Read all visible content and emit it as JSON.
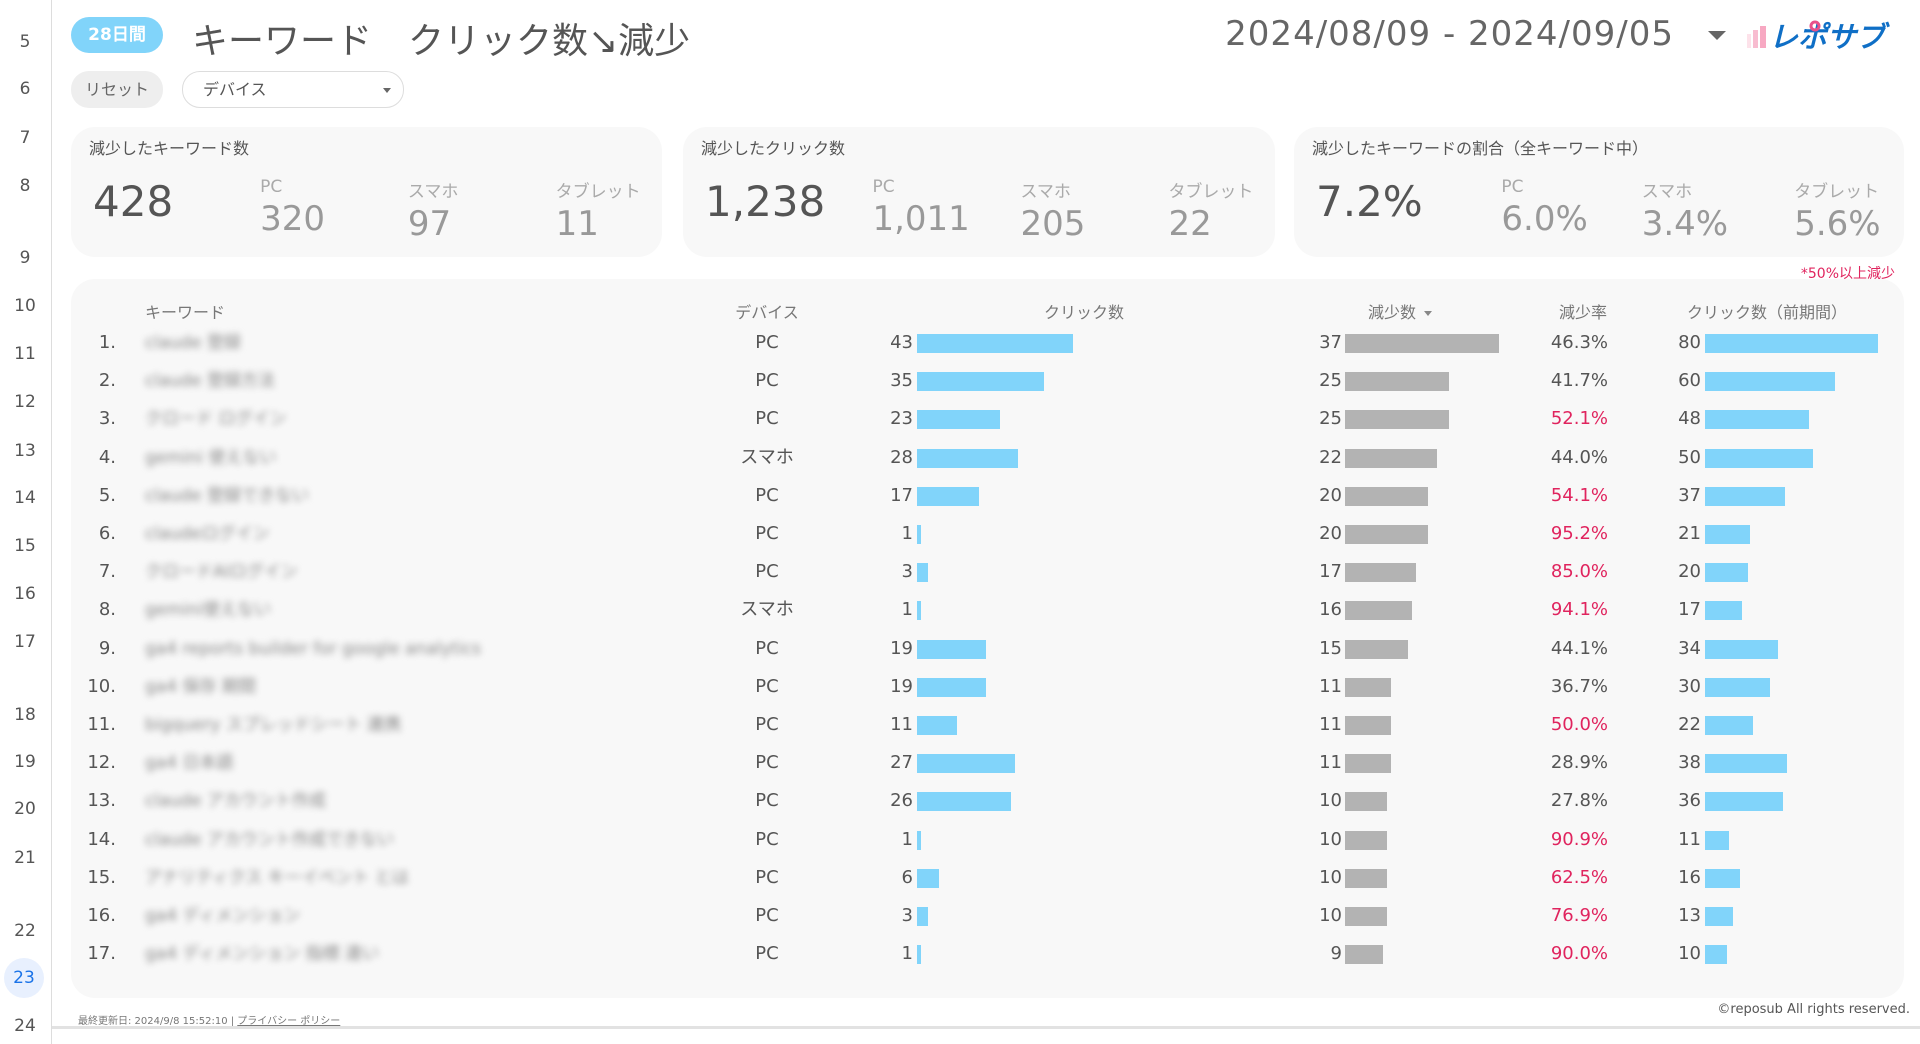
{
  "gutter_rows": [
    "5",
    "6",
    "7",
    "8",
    "9",
    "10",
    "11",
    "12",
    "13",
    "14",
    "15",
    "16",
    "17",
    "18",
    "19",
    "20",
    "21",
    "22",
    "23",
    "24"
  ],
  "selected_row": "23",
  "header": {
    "period_badge": "28日間",
    "title": "キーワード　クリック数↘減少",
    "date_range": "2024/08/09 - 2024/09/05",
    "logo_text": "レポサブ"
  },
  "controls": {
    "reset_label": "リセット",
    "device_dropdown": "デバイス"
  },
  "cards": [
    {
      "label": "減少したキーワード数",
      "total": "428",
      "pc_label": "PC",
      "pc": "320",
      "sp_label": "スマホ",
      "sp": "97",
      "tab_label": "タブレット",
      "tab": "11"
    },
    {
      "label": "減少したクリック数",
      "total": "1,238",
      "pc_label": "PC",
      "pc": "1,011",
      "sp_label": "スマホ",
      "sp": "205",
      "tab_label": "タブレット",
      "tab": "22"
    },
    {
      "label": "減少したキーワードの割合（全キーワード中）",
      "total": "7.2%",
      "pc_label": "PC",
      "pc": "6.0%",
      "sp_label": "スマホ",
      "sp": "3.4%",
      "tab_label": "タブレット",
      "tab": "5.6%"
    }
  ],
  "note": "*50%以上減少",
  "table": {
    "headers": {
      "keyword": "キーワード",
      "device": "デバイス",
      "clicks": "クリック数",
      "decrease": "減少数",
      "rate": "減少率",
      "prev_clicks": "クリック数（前期間）"
    },
    "sort_column": "decrease",
    "highlight_threshold_percent": 50,
    "colors": {
      "clicks_bar": "#81d4fa",
      "decrease_bar": "#b3b3b3",
      "highlight": "#e0245e"
    },
    "rows": [
      {
        "rank": "1.",
        "keyword": "claude 登録",
        "device": "PC",
        "clicks": 43,
        "decrease": 37,
        "rate": "46.3%",
        "prev": 80
      },
      {
        "rank": "2.",
        "keyword": "claude 登録方法",
        "device": "PC",
        "clicks": 35,
        "decrease": 25,
        "rate": "41.7%",
        "prev": 60
      },
      {
        "rank": "3.",
        "keyword": "クロード ログイン",
        "device": "PC",
        "clicks": 23,
        "decrease": 25,
        "rate": "52.1%",
        "prev": 48
      },
      {
        "rank": "4.",
        "keyword": "gemini 使えない",
        "device": "スマホ",
        "clicks": 28,
        "decrease": 22,
        "rate": "44.0%",
        "prev": 50
      },
      {
        "rank": "5.",
        "keyword": "claude 登録できない",
        "device": "PC",
        "clicks": 17,
        "decrease": 20,
        "rate": "54.1%",
        "prev": 37
      },
      {
        "rank": "6.",
        "keyword": "claudeログイン",
        "device": "PC",
        "clicks": 1,
        "decrease": 20,
        "rate": "95.2%",
        "prev": 21
      },
      {
        "rank": "7.",
        "keyword": "クロードAIログイン",
        "device": "PC",
        "clicks": 3,
        "decrease": 17,
        "rate": "85.0%",
        "prev": 20
      },
      {
        "rank": "8.",
        "keyword": "gemini使えない",
        "device": "スマホ",
        "clicks": 1,
        "decrease": 16,
        "rate": "94.1%",
        "prev": 17
      },
      {
        "rank": "9.",
        "keyword": "ga4 reports builder for google analytics",
        "device": "PC",
        "clicks": 19,
        "decrease": 15,
        "rate": "44.1%",
        "prev": 34
      },
      {
        "rank": "10.",
        "keyword": "ga4 保存 期間",
        "device": "PC",
        "clicks": 19,
        "decrease": 11,
        "rate": "36.7%",
        "prev": 30
      },
      {
        "rank": "11.",
        "keyword": "bigquery スプレッドシート 連携",
        "device": "PC",
        "clicks": 11,
        "decrease": 11,
        "rate": "50.0%",
        "prev": 22
      },
      {
        "rank": "12.",
        "keyword": "ga4 日本語",
        "device": "PC",
        "clicks": 27,
        "decrease": 11,
        "rate": "28.9%",
        "prev": 38
      },
      {
        "rank": "13.",
        "keyword": "claude アカウント作成",
        "device": "PC",
        "clicks": 26,
        "decrease": 10,
        "rate": "27.8%",
        "prev": 36
      },
      {
        "rank": "14.",
        "keyword": "claude アカウント作成できない",
        "device": "PC",
        "clicks": 1,
        "decrease": 10,
        "rate": "90.9%",
        "prev": 11
      },
      {
        "rank": "15.",
        "keyword": "アナリティクス キーイベント とは",
        "device": "PC",
        "clicks": 6,
        "decrease": 10,
        "rate": "62.5%",
        "prev": 16
      },
      {
        "rank": "16.",
        "keyword": "ga4 ディメンション",
        "device": "PC",
        "clicks": 3,
        "decrease": 10,
        "rate": "76.9%",
        "prev": 13
      },
      {
        "rank": "17.",
        "keyword": "ga4 ディメンション 指標 違い",
        "device": "PC",
        "clicks": 1,
        "decrease": 9,
        "rate": "90.0%",
        "prev": 10
      }
    ]
  },
  "footer": {
    "last_updated": "最終更新日: 2024/9/8 15:52:10",
    "privacy_link": "プライバシー ポリシー",
    "copyright": "©reposub All rights reserved."
  }
}
